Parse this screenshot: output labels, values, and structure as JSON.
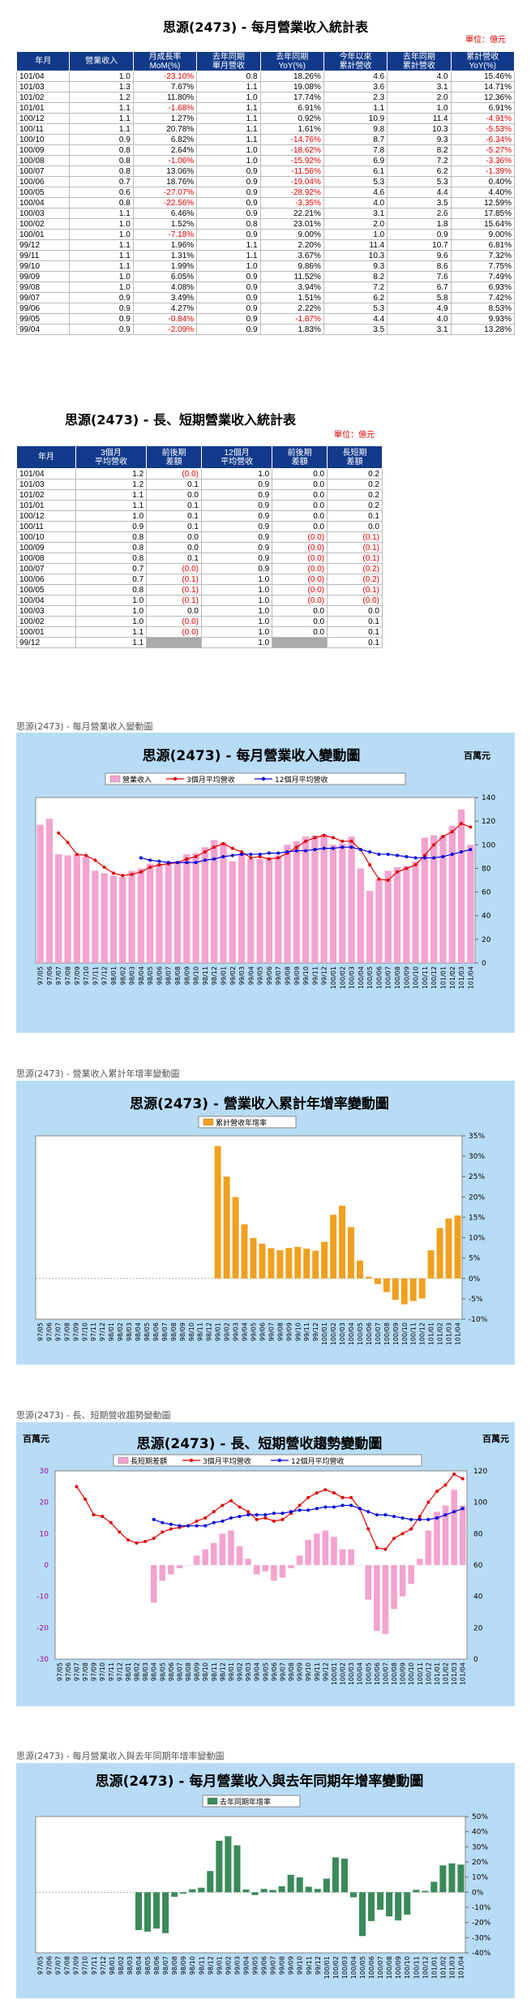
{
  "title1": "思源(2473) - 每月營業收入統計表",
  "unit": "單位：億元",
  "monthly": {
    "headers": [
      "年月",
      "營業收入",
      "月成長率\nMoM(%)",
      "去年同期\n單月營收",
      "去年同期\nYoY(%)",
      "今年以來\n累計營收",
      "去年同期\n累計營收",
      "累計營收\nYoY(%)"
    ],
    "rows": [
      [
        "101/04",
        "1.0",
        "-23.10%",
        "0.8",
        "18.26%",
        "4.6",
        "4.0",
        "15.46%"
      ],
      [
        "101/03",
        "1.3",
        "7.67%",
        "1.1",
        "19.08%",
        "3.6",
        "3.1",
        "14.71%"
      ],
      [
        "101/02",
        "1.2",
        "11.80%",
        "1.0",
        "17.74%",
        "2.3",
        "2.0",
        "12.36%"
      ],
      [
        "101/01",
        "1.1",
        "-1.68%",
        "1.1",
        "6.91%",
        "1.1",
        "1.0",
        "6.91%"
      ],
      [
        "100/12",
        "1.1",
        "1.27%",
        "1.1",
        "0.92%",
        "10.9",
        "11.4",
        "-4.91%"
      ],
      [
        "100/11",
        "1.1",
        "20.78%",
        "1.1",
        "1.61%",
        "9.8",
        "10.3",
        "-5.53%"
      ],
      [
        "100/10",
        "0.9",
        "6.82%",
        "1.1",
        "-14.76%",
        "8.7",
        "9.3",
        "-6.34%"
      ],
      [
        "100/09",
        "0.8",
        "2.64%",
        "1.0",
        "-18.62%",
        "7.8",
        "8.2",
        "-5.27%"
      ],
      [
        "100/08",
        "0.8",
        "-1.06%",
        "1.0",
        "-15.92%",
        "6.9",
        "7.2",
        "-3.36%"
      ],
      [
        "100/07",
        "0.8",
        "13.06%",
        "0.9",
        "-11.56%",
        "6.1",
        "6.2",
        "-1.39%"
      ],
      [
        "100/06",
        "0.7",
        "18.76%",
        "0.9",
        "-19.04%",
        "5.3",
        "5.3",
        "0.40%"
      ],
      [
        "100/05",
        "0.6",
        "-27.07%",
        "0.9",
        "-28.92%",
        "4.6",
        "4.4",
        "4.40%"
      ],
      [
        "100/04",
        "0.8",
        "-22.56%",
        "0.9",
        "-3.35%",
        "4.0",
        "3.5",
        "12.59%"
      ],
      [
        "100/03",
        "1.1",
        "6.46%",
        "0.9",
        "22.21%",
        "3.1",
        "2.6",
        "17.85%"
      ],
      [
        "100/02",
        "1.0",
        "1.52%",
        "0.8",
        "23.01%",
        "2.0",
        "1.8",
        "15.64%"
      ],
      [
        "100/01",
        "1.0",
        "-7.18%",
        "0.9",
        "9.00%",
        "1.0",
        "0.9",
        "9.00%"
      ],
      [
        "99/12",
        "1.1",
        "1.96%",
        "1.1",
        "2.20%",
        "11.4",
        "10.7",
        "6.81%"
      ],
      [
        "99/11",
        "1.1",
        "1.31%",
        "1.1",
        "3.67%",
        "10.3",
        "9.6",
        "7.32%"
      ],
      [
        "99/10",
        "1.1",
        "1.99%",
        "1.0",
        "9.86%",
        "9.3",
        "8.6",
        "7.75%"
      ],
      [
        "99/09",
        "1.0",
        "6.05%",
        "0.9",
        "11.52%",
        "8.2",
        "7.6",
        "7.49%"
      ],
      [
        "99/08",
        "1.0",
        "4.08%",
        "0.9",
        "3.94%",
        "7.2",
        "6.7",
        "6.93%"
      ],
      [
        "99/07",
        "0.9",
        "3.49%",
        "0.9",
        "1.51%",
        "6.2",
        "5.8",
        "7.42%"
      ],
      [
        "99/06",
        "0.9",
        "4.27%",
        "0.9",
        "2.22%",
        "5.3",
        "4.9",
        "8.53%"
      ],
      [
        "99/05",
        "0.9",
        "-0.84%",
        "0.9",
        "-1.87%",
        "4.4",
        "4.0",
        "9.93%"
      ],
      [
        "99/04",
        "0.9",
        "-2.09%",
        "0.9",
        "1.83%",
        "3.5",
        "3.1",
        "13.28%"
      ]
    ]
  },
  "title2": "思源(2473) - 長、短期營業收入統計表",
  "shortlong": {
    "headers": [
      "年月",
      "3個月\n平均營收",
      "前後期\n差額",
      "12個月\n平均營收",
      "前後期\n差額",
      "長短期\n差額"
    ],
    "rows": [
      [
        "101/04",
        "1.2",
        "(0.0)",
        "1.0",
        "0.0",
        "0.2"
      ],
      [
        "101/03",
        "1.2",
        "0.1",
        "0.9",
        "0.0",
        "0.2"
      ],
      [
        "101/02",
        "1.1",
        "0.0",
        "0.9",
        "0.0",
        "0.2"
      ],
      [
        "101/01",
        "1.1",
        "0.1",
        "0.9",
        "0.0",
        "0.2"
      ],
      [
        "100/12",
        "1.0",
        "0.1",
        "0.9",
        "0.0",
        "0.1"
      ],
      [
        "100/11",
        "0.9",
        "0.1",
        "0.9",
        "0.0",
        "0.0"
      ],
      [
        "100/10",
        "0.8",
        "0.0",
        "0.9",
        "(0.0)",
        "(0.1)"
      ],
      [
        "100/09",
        "0.8",
        "0.0",
        "0.9",
        "(0.0)",
        "(0.1)"
      ],
      [
        "100/08",
        "0.8",
        "0.1",
        "0.9",
        "(0.0)",
        "(0.1)"
      ],
      [
        "100/07",
        "0.7",
        "(0.0)",
        "0.9",
        "(0.0)",
        "(0.2)"
      ],
      [
        "100/06",
        "0.7",
        "(0.1)",
        "1.0",
        "(0.0)",
        "(0.2)"
      ],
      [
        "100/05",
        "0.8",
        "(0.1)",
        "1.0",
        "(0.0)",
        "(0.1)"
      ],
      [
        "100/04",
        "1.0",
        "(0.1)",
        "1.0",
        "(0.0)",
        "(0.0)"
      ],
      [
        "100/03",
        "1.0",
        "0.0",
        "1.0",
        "0.0",
        "0.0"
      ],
      [
        "100/02",
        "1.0",
        "(0.0)",
        "1.0",
        "0.0",
        "0.1"
      ],
      [
        "100/01",
        "1.1",
        "(0.0)",
        "1.0",
        "0.0",
        "0.1"
      ],
      [
        "99/12",
        "1.1",
        "",
        "1.0",
        "",
        "0.1"
      ]
    ]
  },
  "charts": {
    "c1": {
      "section": "思源(2473) - 每月營業收入變動圖",
      "title": "思源(2473) - 每月營業收入變動圖",
      "corner": "百萬元"
    },
    "c2": {
      "section": "思源(2473) - 營業收入累計年增率變動圖",
      "title": "思源(2473) - 營業收入累計年增率變動圖"
    },
    "c3": {
      "section": "思源(2473) - 長、短期營收趨勢變動圖",
      "title": "思源(2473) - 長、短期營收趨勢變動圖",
      "corner_left": "百萬元",
      "corner_right": "百萬元"
    },
    "c4": {
      "section": "思源(2473) - 每月營業收入與去年同期年增率變動圖",
      "title": "思源(2473) - 每月營業收入與去年同期年增率變動圖"
    }
  },
  "chart_data": [
    {
      "type": "bar",
      "title": "思源(2473) - 每月營業收入變動圖",
      "x": [
        "97/05",
        "97/06",
        "97/07",
        "97/08",
        "97/09",
        "97/10",
        "97/11",
        "97/12",
        "98/01",
        "98/02",
        "98/03",
        "98/04",
        "98/05",
        "98/06",
        "98/07",
        "98/08",
        "98/09",
        "98/10",
        "98/11",
        "98/12",
        "99/01",
        "99/02",
        "99/03",
        "99/04",
        "99/05",
        "99/06",
        "99/07",
        "99/08",
        "99/09",
        "99/10",
        "99/11",
        "99/12",
        "100/01",
        "100/02",
        "100/03",
        "100/04",
        "100/05",
        "100/06",
        "100/07",
        "100/08",
        "100/09",
        "100/10",
        "100/11",
        "100/12",
        "101/01",
        "101/02",
        "101/03",
        "101/04"
      ],
      "ylim": [
        0,
        140
      ],
      "yticks": [
        0,
        20,
        40,
        60,
        80,
        100,
        120,
        140
      ],
      "series": [
        {
          "name": "營業收入",
          "kind": "bar",
          "color": "#f3a3cf",
          "values": [
            117,
            122,
            92,
            91,
            92,
            90,
            78,
            76,
            74,
            73,
            78,
            80,
            84,
            84,
            85,
            86,
            92,
            93,
            98,
            104,
            102,
            86,
            93,
            88,
            88,
            89,
            91,
            100,
            103,
            107,
            108,
            109,
            100,
            101,
            107,
            80,
            61,
            71,
            78,
            81,
            82,
            86,
            106,
            108,
            108,
            116,
            130,
            100
          ]
        },
        {
          "name": "3個月平均營收",
          "kind": "line",
          "color": "#e00000",
          "values": [
            null,
            null,
            110,
            102,
            92,
            91,
            87,
            81,
            76,
            74,
            75,
            77,
            81,
            83,
            84,
            85,
            88,
            90,
            94,
            98,
            101,
            97,
            94,
            89,
            90,
            88,
            89,
            93,
            98,
            103,
            106,
            108,
            106,
            103,
            103,
            96,
            83,
            71,
            70,
            77,
            80,
            83,
            91,
            100,
            107,
            111,
            118,
            115
          ]
        },
        {
          "name": "12個月平均營收",
          "kind": "line",
          "color": "#0000dd",
          "values": [
            null,
            null,
            null,
            null,
            null,
            null,
            null,
            null,
            null,
            null,
            null,
            89,
            87,
            86,
            85,
            85,
            85,
            85,
            87,
            88,
            90,
            91,
            92,
            92,
            92,
            93,
            93,
            94,
            95,
            95,
            96,
            97,
            97,
            98,
            98,
            96,
            94,
            92,
            92,
            91,
            90,
            89,
            89,
            89,
            90,
            92,
            94,
            96
          ]
        }
      ]
    },
    {
      "type": "bar",
      "title": "思源(2473) - 營業收入累計年增率變動圖",
      "x": [
        "97/05",
        "97/06",
        "97/07",
        "97/08",
        "97/09",
        "97/10",
        "97/11",
        "97/12",
        "98/01",
        "98/02",
        "98/03",
        "98/04",
        "98/05",
        "98/06",
        "98/07",
        "98/08",
        "98/09",
        "98/10",
        "98/11",
        "98/12",
        "99/01",
        "99/02",
        "99/03",
        "99/04",
        "99/05",
        "99/06",
        "99/07",
        "99/08",
        "99/09",
        "99/10",
        "99/11",
        "99/12",
        "100/01",
        "100/02",
        "100/03",
        "100/04",
        "100/05",
        "100/06",
        "100/07",
        "100/08",
        "100/09",
        "100/10",
        "100/11",
        "100/12",
        "101/01",
        "101/02",
        "101/03",
        "101/04"
      ],
      "ylim": [
        -10,
        35
      ],
      "yticks": [
        -10,
        -5,
        0,
        5,
        10,
        15,
        20,
        25,
        30,
        35
      ],
      "ytick_suffix": "%",
      "series": [
        {
          "name": "累計營收年增率",
          "color": "#f0a020",
          "values": [
            null,
            null,
            null,
            null,
            null,
            null,
            null,
            null,
            null,
            null,
            null,
            null,
            null,
            null,
            null,
            null,
            null,
            null,
            null,
            null,
            32.5,
            25,
            20,
            13.28,
            9.93,
            8.53,
            7.42,
            6.93,
            7.49,
            7.75,
            7.32,
            6.81,
            9,
            15.64,
            17.85,
            12.59,
            4.4,
            0.4,
            -1.39,
            -3.36,
            -5.27,
            -6.34,
            -5.53,
            -4.91,
            6.91,
            12.36,
            14.71,
            15.46
          ]
        }
      ]
    },
    {
      "type": "bar",
      "title": "思源(2473) - 長、短期營收趨勢變動圖",
      "x": [
        "97/05",
        "97/06",
        "97/07",
        "97/08",
        "97/09",
        "97/10",
        "97/11",
        "97/12",
        "98/01",
        "98/02",
        "98/03",
        "98/04",
        "98/05",
        "98/06",
        "98/07",
        "98/08",
        "98/09",
        "98/10",
        "98/11",
        "98/12",
        "99/01",
        "99/02",
        "99/03",
        "99/04",
        "99/05",
        "99/06",
        "99/07",
        "99/08",
        "99/09",
        "99/10",
        "99/11",
        "99/12",
        "100/01",
        "100/02",
        "100/03",
        "100/04",
        "100/05",
        "100/06",
        "100/07",
        "100/08",
        "100/09",
        "100/10",
        "100/11",
        "100/12",
        "101/01",
        "101/02",
        "101/03",
        "101/04"
      ],
      "ylim_left": [
        -30,
        30
      ],
      "yticks_left": [
        -30,
        -20,
        -10,
        0,
        10,
        20,
        30
      ],
      "ylim_right": [
        0,
        120
      ],
      "yticks_right": [
        0,
        20,
        40,
        60,
        80,
        100,
        120
      ],
      "series": [
        {
          "name": "長短期差額",
          "kind": "bar",
          "axis": "left",
          "color": "#f3a3cf",
          "values": [
            null,
            null,
            null,
            null,
            null,
            null,
            null,
            null,
            null,
            null,
            null,
            -12,
            -5,
            -3,
            -1,
            0,
            3,
            5,
            7,
            10,
            11,
            6,
            2,
            -3,
            -2,
            -5,
            -4,
            -1,
            3,
            8,
            10,
            11,
            9,
            5,
            5,
            0,
            -11,
            -21,
            -22,
            -14,
            -10,
            -6,
            2,
            11,
            17,
            19,
            24,
            19
          ]
        },
        {
          "name": "3個月平均營收",
          "kind": "line",
          "axis": "right",
          "color": "#e00000",
          "values": [
            null,
            null,
            110,
            102,
            92,
            91,
            87,
            81,
            76,
            74,
            75,
            77,
            81,
            83,
            84,
            85,
            88,
            90,
            94,
            98,
            101,
            97,
            94,
            89,
            90,
            88,
            89,
            93,
            98,
            103,
            106,
            108,
            106,
            103,
            103,
            96,
            83,
            71,
            70,
            77,
            80,
            83,
            91,
            100,
            107,
            111,
            118,
            115
          ]
        },
        {
          "name": "12個月平均營收",
          "kind": "line",
          "axis": "right",
          "color": "#0000dd",
          "values": [
            null,
            null,
            null,
            null,
            null,
            null,
            null,
            null,
            null,
            null,
            null,
            89,
            87,
            86,
            85,
            85,
            85,
            85,
            87,
            88,
            90,
            91,
            92,
            92,
            92,
            93,
            93,
            94,
            95,
            95,
            96,
            97,
            97,
            98,
            98,
            96,
            94,
            92,
            92,
            91,
            90,
            89,
            89,
            89,
            90,
            92,
            94,
            96
          ]
        }
      ]
    },
    {
      "type": "bar",
      "title": "思源(2473) - 每月營業收入與去年同期年增率變動圖",
      "x": [
        "97/05",
        "97/06",
        "97/07",
        "97/08",
        "97/09",
        "97/10",
        "97/11",
        "97/12",
        "98/01",
        "98/02",
        "98/03",
        "98/04",
        "98/05",
        "98/06",
        "98/07",
        "98/08",
        "98/09",
        "98/10",
        "98/11",
        "98/12",
        "99/01",
        "99/02",
        "99/03",
        "99/04",
        "99/05",
        "99/06",
        "99/07",
        "99/08",
        "99/09",
        "99/10",
        "99/11",
        "99/12",
        "100/01",
        "100/02",
        "100/03",
        "100/04",
        "100/05",
        "100/06",
        "100/07",
        "100/08",
        "100/09",
        "100/10",
        "100/11",
        "100/12",
        "101/01",
        "101/02",
        "101/03",
        "101/04"
      ],
      "ylim": [
        -40,
        50
      ],
      "yticks": [
        -40,
        -30,
        -20,
        -10,
        0,
        10,
        20,
        30,
        40,
        50
      ],
      "ytick_suffix": "%",
      "series": [
        {
          "name": "去年同期年增率",
          "color": "#3a8a5a",
          "values": [
            null,
            null,
            null,
            null,
            null,
            null,
            null,
            null,
            null,
            null,
            null,
            -25,
            -26,
            -24,
            -27,
            -3,
            -1,
            2,
            3,
            14,
            34,
            37,
            31,
            1.83,
            -1.87,
            2.22,
            1.51,
            3.94,
            11.52,
            9.86,
            3.67,
            2.2,
            9,
            23.01,
            22.21,
            -3.35,
            -28.92,
            -19.04,
            -11.56,
            -15.92,
            -18.62,
            -14.76,
            1.61,
            0.92,
            6.91,
            17.74,
            19.08,
            18.26
          ]
        }
      ]
    }
  ]
}
